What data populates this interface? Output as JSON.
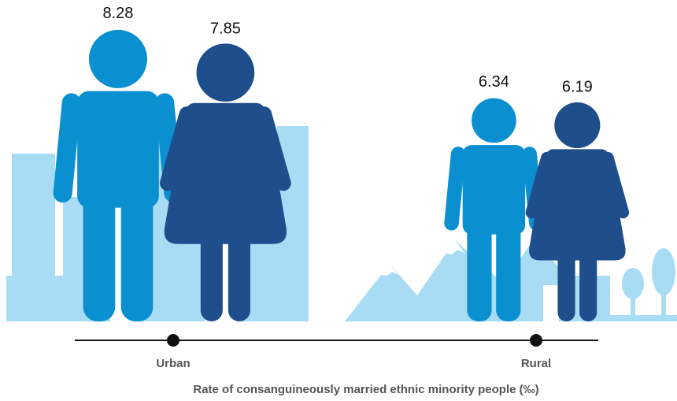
{
  "chart_data": {
    "type": "pictograph",
    "title": "Rate of consanguineously married ethnic minority people (‰)",
    "categories": [
      "Urban",
      "Rural"
    ],
    "series": [
      {
        "color": "#0a8fd1",
        "values": [
          8.28,
          6.34
        ]
      },
      {
        "color": "#1f4e8c",
        "values": [
          7.85,
          6.19
        ]
      }
    ]
  }
}
